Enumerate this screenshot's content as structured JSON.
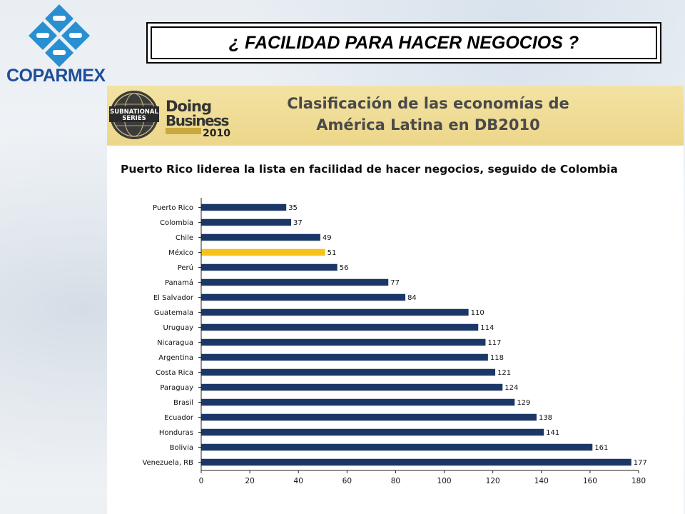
{
  "header": {
    "logo_text": "COPARMEX",
    "headline": "¿ FACILIDAD PARA HACER NEGOCIOS ?",
    "colors": {
      "logo_blue": "#2a8fd0",
      "logo_text": "#1f4e97"
    }
  },
  "banner": {
    "badge_line1": "SUBNATIONAL",
    "badge_line2": "SERIES",
    "brand_line1": "Doing",
    "brand_line2": "Business",
    "brand_year": "2010",
    "title_line1": "Clasificación de las economías de",
    "title_line2": "América Latina en DB2010",
    "colors": {
      "background": "#ecd68a",
      "title": "#4a4a4a"
    }
  },
  "subtitle": "Puerto Rico liderea la lista en facilidad de hacer negocios, seguido de Colombia",
  "chart_data": {
    "type": "bar",
    "orientation": "horizontal",
    "categories": [
      "Puerto Rico",
      "Colombia",
      "Chile",
      "México",
      "Perú",
      "Panamá",
      "El Salvador",
      "Guatemala",
      "Uruguay",
      "Nicaragua",
      "Argentina",
      "Costa Rica",
      "Paraguay",
      "Brasil",
      "Ecuador",
      "Honduras",
      "Bolivia",
      "Venezuela, RB"
    ],
    "values": [
      35,
      37,
      49,
      51,
      56,
      77,
      84,
      110,
      114,
      117,
      118,
      121,
      124,
      129,
      138,
      141,
      161,
      177
    ],
    "highlight": "México",
    "xlim": [
      0,
      180
    ],
    "xticks": [
      0,
      20,
      40,
      60,
      80,
      100,
      120,
      140,
      160,
      180
    ],
    "grid": false,
    "legend": "none",
    "colors": {
      "bar": "#1b3767",
      "highlight": "#f5c31a"
    }
  }
}
